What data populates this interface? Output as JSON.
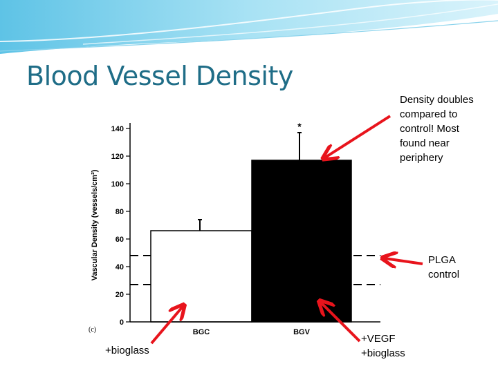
{
  "slide": {
    "title": "Blood Vessel Density",
    "annotations": {
      "density": [
        "Density doubles",
        "compared to",
        "control! Most",
        "found near",
        "periphery"
      ],
      "plga": [
        "PLGA",
        "control"
      ],
      "bgc": "+bioglass",
      "bgv": [
        "+VEGF",
        "+bioglass"
      ]
    },
    "colors": {
      "title": "#1f6d87",
      "arrow": "#e8141c",
      "banner_light": "#c9ecf8",
      "banner_mid": "#8fd6ef"
    }
  },
  "chart_data": {
    "type": "bar",
    "panel_label": "(c)",
    "ylabel": "Vascular Density (vessels/cm²)",
    "xlabel": "",
    "ylim": [
      0,
      140
    ],
    "yticks": [
      0,
      20,
      40,
      60,
      80,
      100,
      120,
      140
    ],
    "categories": [
      "BGC",
      "BGV"
    ],
    "values": [
      66,
      117
    ],
    "errors": [
      8,
      20
    ],
    "bar_fills": [
      "#ffffff",
      "#000000"
    ],
    "significance": [
      "",
      "*"
    ],
    "reference_lines": [
      48,
      27
    ],
    "grid": false
  }
}
